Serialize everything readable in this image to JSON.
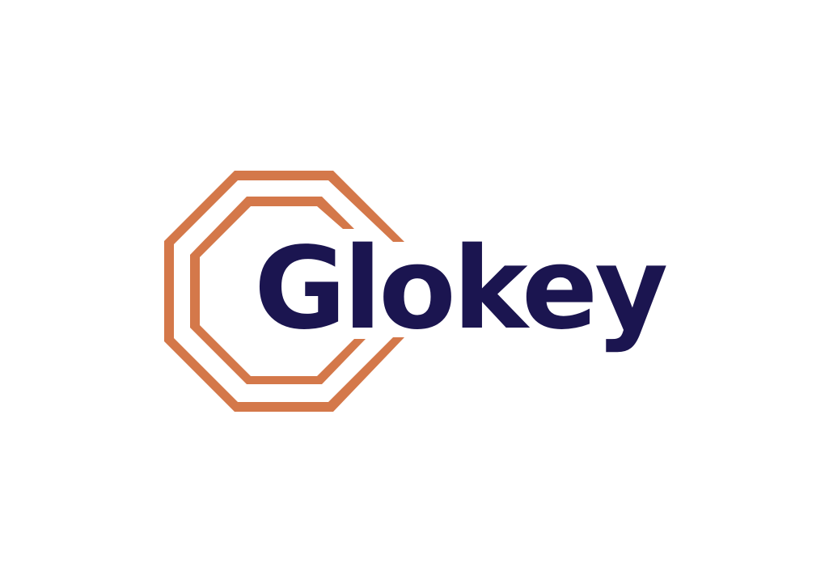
{
  "logo": {
    "wordmark": "Glokey",
    "icon": "octagon-outline-icon",
    "colors": {
      "emblem": "#D4784A",
      "wordmark": "#1B1550",
      "background": "#FFFFFF"
    }
  }
}
